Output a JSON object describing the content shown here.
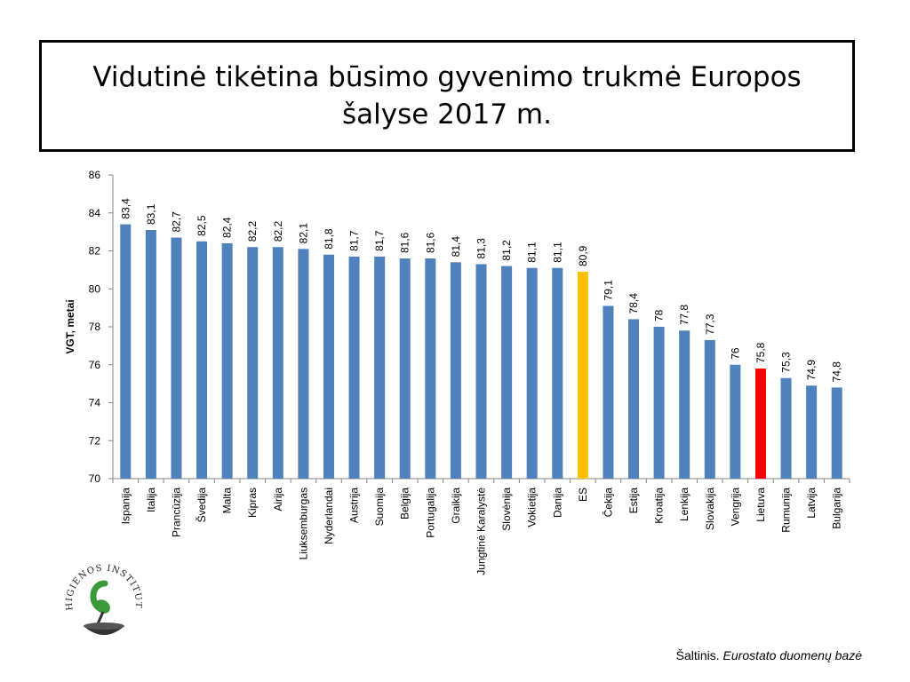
{
  "title": "Vidutinė tikėtina būsimo gyvenimo trukmė  Europos šalyse 2017 m.",
  "source": {
    "prefix": "Šaltinis.",
    "text": "Eurostato duomenų bazė"
  },
  "logo": {
    "text": "HIGIENOS INSTITUTAS",
    "icon": "institute-logo-icon"
  },
  "colors": {
    "bar": "#4f81bd",
    "eu": "#ffc000",
    "lithuania": "#ff0000"
  },
  "chart_data": {
    "type": "bar",
    "title": "",
    "xlabel": "",
    "ylabel": "VGT, metai",
    "ylim": [
      70,
      86
    ],
    "yticks": [
      70,
      72,
      74,
      76,
      78,
      80,
      82,
      84,
      86
    ],
    "grid": false,
    "categories": [
      "Ispanija",
      "Italija",
      "Prancūzija",
      "Švedija",
      "Malta",
      "Kipras",
      "Airija",
      "Liuksemburgas",
      "Nyderlandai",
      "Austrija",
      "Suomija",
      "Belgija",
      "Portugalija",
      "Graikija",
      "Jungtinė Karalystė",
      "Slovėnija",
      "Vokietija",
      "Danija",
      "ES",
      "Čekija",
      "Estija",
      "Kroatija",
      "Lenkija",
      "Slovakija",
      "Vengrija",
      "Lietuva",
      "Rumunija",
      "Latvija",
      "Bulgarija"
    ],
    "values": [
      83.4,
      83.1,
      82.7,
      82.5,
      82.4,
      82.2,
      82.2,
      82.1,
      81.8,
      81.7,
      81.7,
      81.6,
      81.6,
      81.4,
      81.3,
      81.2,
      81.1,
      81.1,
      80.9,
      79.1,
      78.4,
      78,
      77.8,
      77.3,
      76,
      75.8,
      75.3,
      74.9,
      74.8
    ],
    "data_labels": [
      "83,4",
      "83,1",
      "82,7",
      "82,5",
      "82,4",
      "82,2",
      "82,2",
      "82,1",
      "81,8",
      "81,7",
      "81,7",
      "81,6",
      "81,6",
      "81,4",
      "81,3",
      "81,2",
      "81,1",
      "81,1",
      "80,9",
      "79,1",
      "78,4",
      "78",
      "77,8",
      "77,3",
      "76",
      "75,8",
      "75,3",
      "74,9",
      "74,8"
    ],
    "highlight": {
      "ES": "eu",
      "Lietuva": "lithuania"
    }
  }
}
